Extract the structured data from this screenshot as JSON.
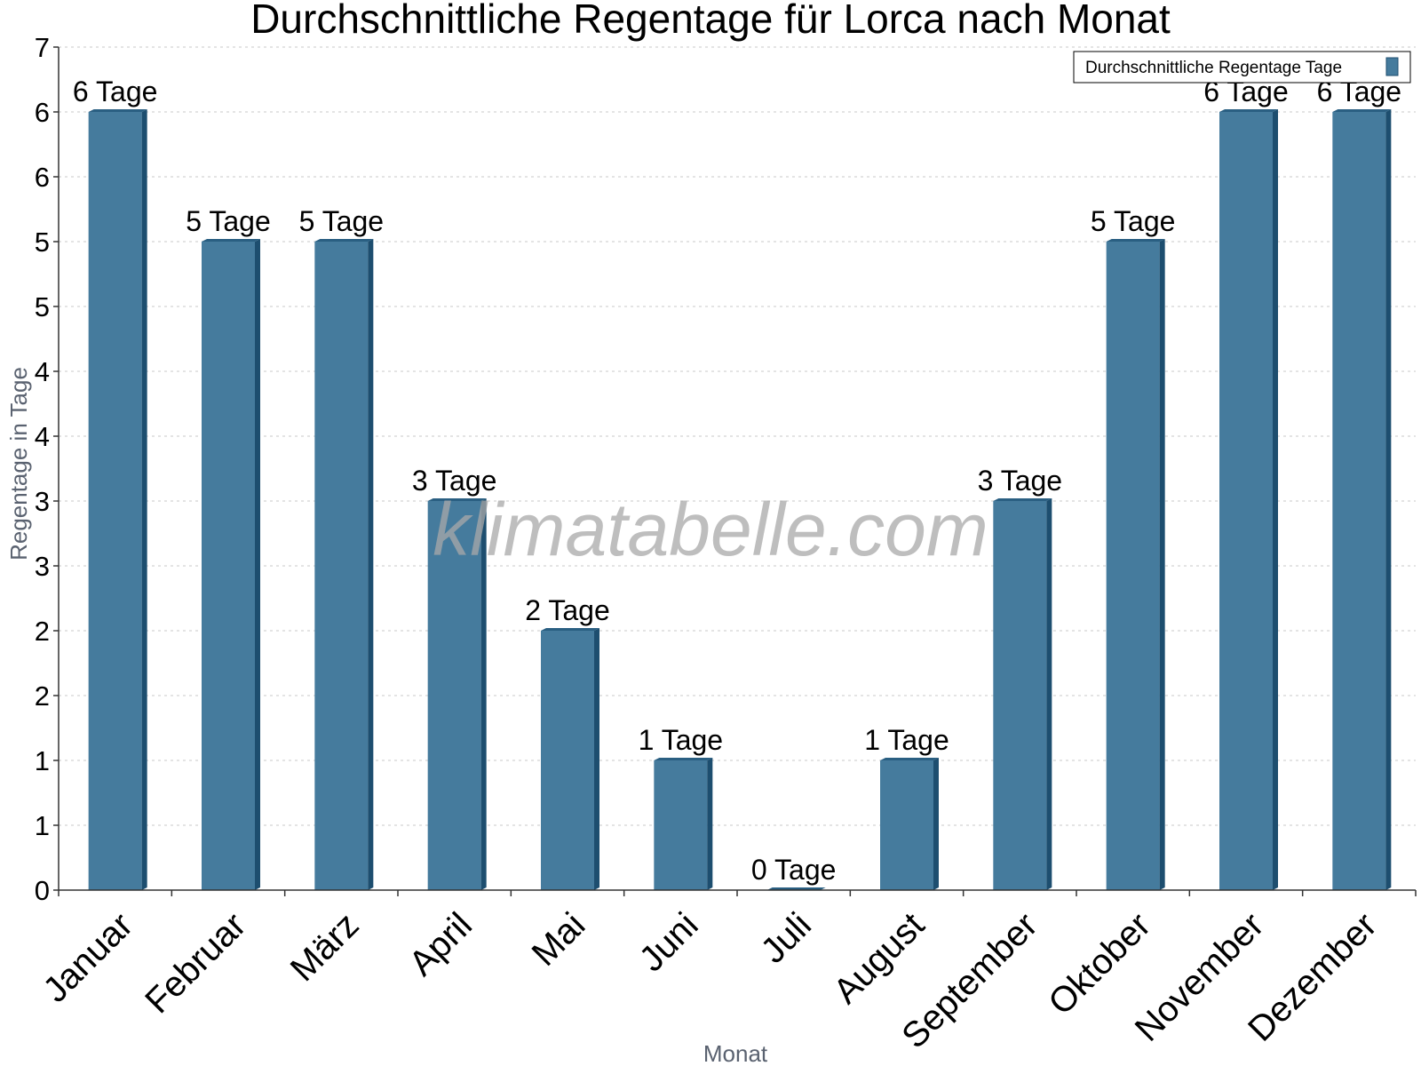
{
  "chart_data": {
    "type": "bar",
    "title": "Durchschnittliche Regentage für Lorca nach Monat",
    "xlabel": "Monat",
    "ylabel": "Regentage in Tage",
    "categories": [
      "Januar",
      "Februar",
      "März",
      "April",
      "Mai",
      "Juni",
      "Juli",
      "August",
      "September",
      "Oktober",
      "November",
      "Dezember"
    ],
    "series": [
      {
        "name": "Durchschnittliche Regentage Tage",
        "values": [
          6,
          5,
          5,
          3,
          2,
          1,
          0,
          1,
          3,
          5,
          6,
          6
        ],
        "labels": [
          "6 Tage",
          "5 Tage",
          "5 Tage",
          "3 Tage",
          "2 Tage",
          "1 Tage",
          "0 Tage",
          "1 Tage",
          "3 Tage",
          "5 Tage",
          "6 Tage",
          "6 Tage"
        ]
      }
    ],
    "ylim": [
      0,
      6.5
    ],
    "y_ticks": [
      0,
      0.5,
      1,
      1.5,
      2,
      2.5,
      3,
      3.5,
      4,
      4.5,
      5,
      5.5,
      6,
      6.5
    ],
    "y_tick_labels": [
      "0",
      "1",
      "1",
      "2",
      "2",
      "3",
      "3",
      "4",
      "4",
      "5",
      "5",
      "6",
      "6",
      "7"
    ],
    "grid": true,
    "legend_position": "top-right",
    "colors": {
      "bar": "#457b9d",
      "bar_side": "#1d4e6f",
      "bar_top": "#2a5f82"
    },
    "watermark": "klimatabelle.com"
  }
}
